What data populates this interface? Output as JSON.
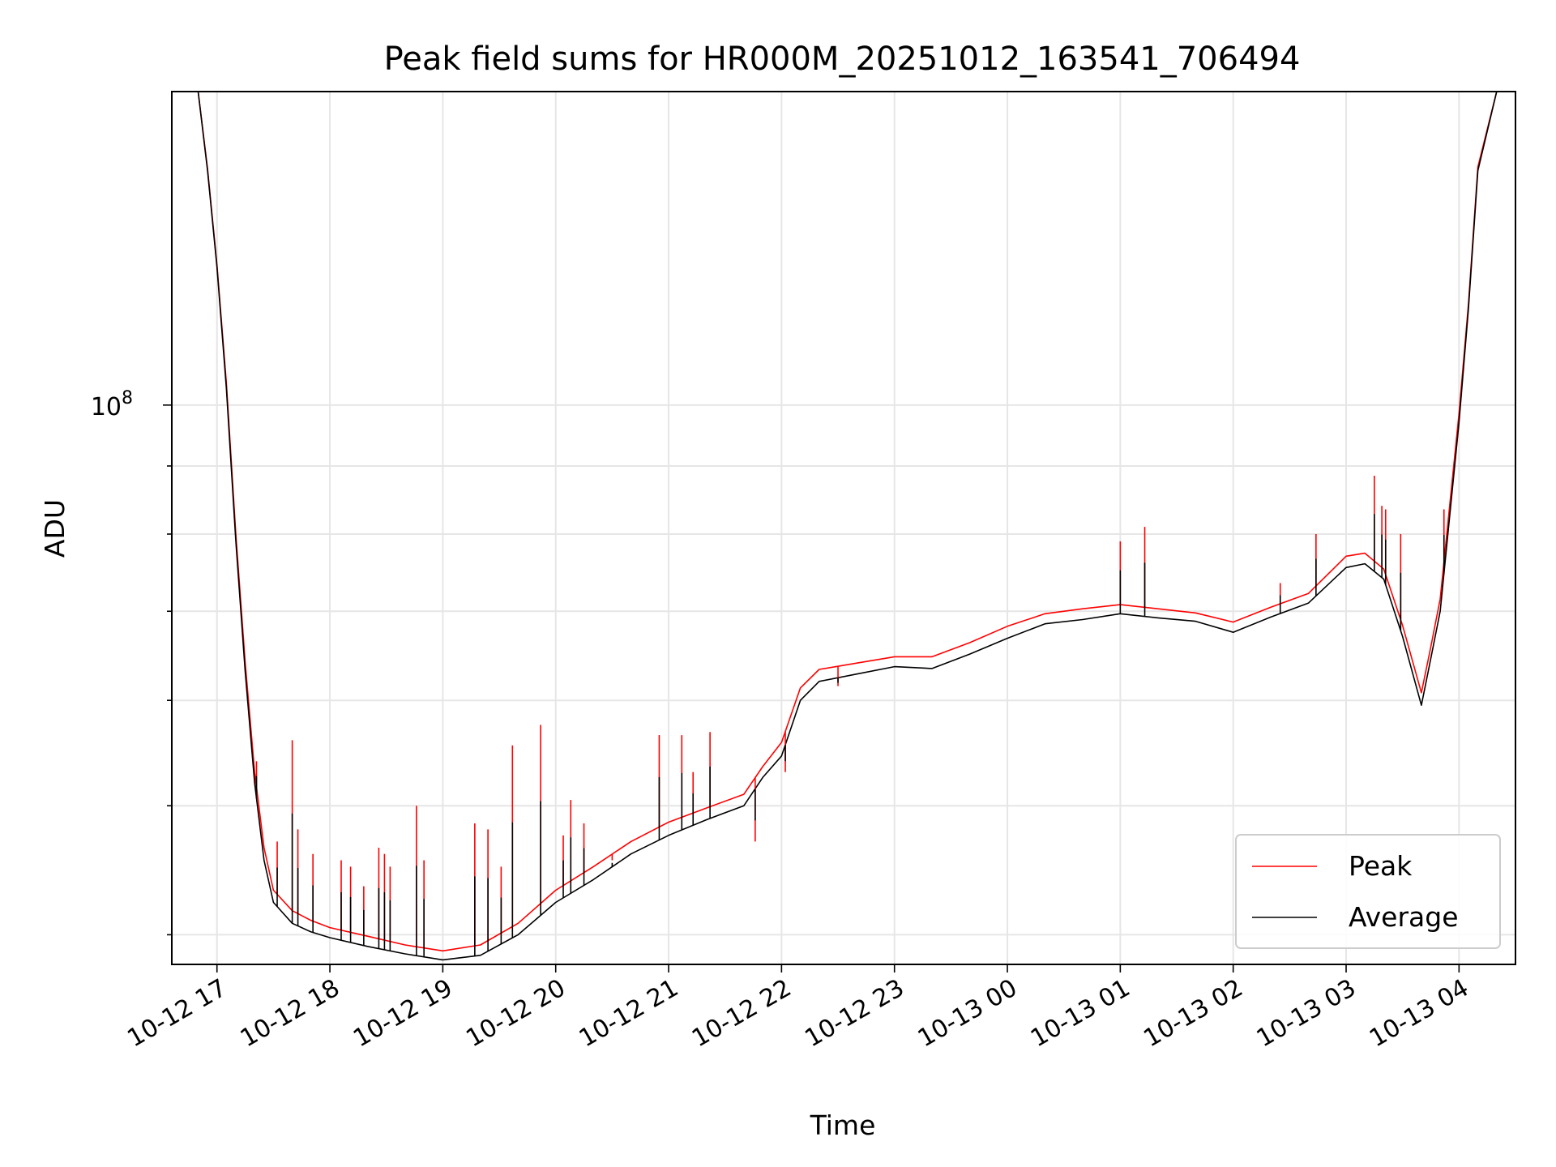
{
  "chart_data": {
    "type": "line",
    "title": "Peak field sums for HR000M_20251012_163541_706494",
    "xlabel": "Time",
    "ylabel": "ADU",
    "x_ticks": [
      "10-12 17",
      "10-12 18",
      "10-12 19",
      "10-12 20",
      "10-12 21",
      "10-12 22",
      "10-12 23",
      "10-13 00",
      "10-13 01",
      "10-13 02",
      "10-13 03",
      "10-13 04"
    ],
    "x_range": [
      "10-12 16:36",
      "10-13 04:30"
    ],
    "y_scale": "log",
    "y_tick_label": {
      "base": "10",
      "exponent": "8"
    },
    "y_range": [
      38000000,
      172000000
    ],
    "grid": true,
    "legend_position": "bottom-right",
    "legend": [
      "Peak",
      "Average"
    ],
    "colors": {
      "peak": "#ff0000",
      "average": "#000000"
    },
    "series": [
      {
        "name": "Average",
        "color": "#000000",
        "x": [
          "10-12 16:50",
          "10-12 16:55",
          "10-12 17:00",
          "10-12 17:05",
          "10-12 17:10",
          "10-12 17:15",
          "10-12 17:20",
          "10-12 17:25",
          "10-12 17:30",
          "10-12 17:40",
          "10-12 17:50",
          "10-12 18:00",
          "10-12 18:20",
          "10-12 18:40",
          "10-12 19:00",
          "10-12 19:20",
          "10-12 19:40",
          "10-12 20:00",
          "10-12 20:20",
          "10-12 20:40",
          "10-12 21:00",
          "10-12 21:20",
          "10-12 21:40",
          "10-12 21:50",
          "10-12 22:00",
          "10-12 22:10",
          "10-12 22:20",
          "10-12 22:40",
          "10-12 23:00",
          "10-12 23:20",
          "10-12 23:40",
          "10-13 00:00",
          "10-13 00:20",
          "10-13 00:40",
          "10-13 01:00",
          "10-13 01:20",
          "10-13 01:40",
          "10-13 02:00",
          "10-13 02:20",
          "10-13 02:40",
          "10-13 03:00",
          "10-13 03:10",
          "10-13 03:20",
          "10-13 03:30",
          "10-13 03:40",
          "10-13 03:45",
          "10-13 03:50",
          "10-13 04:00",
          "10-13 04:05",
          "10-13 04:10",
          "10-13 04:20"
        ],
        "y": [
          172000000,
          150000000,
          127000000,
          103000000,
          79000000,
          63000000,
          52000000,
          45500000,
          42300000,
          40800000,
          40200000,
          39800000,
          39200000,
          38700000,
          38300000,
          38600000,
          40000000,
          42300000,
          44000000,
          46000000,
          47500000,
          48800000,
          50000000,
          52500000,
          54500000,
          60000000,
          62000000,
          62800000,
          63600000,
          63400000,
          65000000,
          66800000,
          68500000,
          69000000,
          69700000,
          69200000,
          68800000,
          67500000,
          69300000,
          71000000,
          75500000,
          76000000,
          74000000,
          67000000,
          59500000,
          64500000,
          70000000,
          97000000,
          118000000,
          150000000,
          172000000
        ]
      },
      {
        "name": "Peak",
        "color": "#ff0000",
        "x": [
          "10-12 16:50",
          "10-12 16:55",
          "10-12 17:00",
          "10-12 17:05",
          "10-12 17:10",
          "10-12 17:15",
          "10-12 17:20",
          "10-12 17:25",
          "10-12 17:30",
          "10-12 17:40",
          "10-12 17:50",
          "10-12 18:00",
          "10-12 18:20",
          "10-12 18:40",
          "10-12 19:00",
          "10-12 19:20",
          "10-12 19:40",
          "10-12 20:00",
          "10-12 20:20",
          "10-12 20:40",
          "10-12 21:00",
          "10-12 21:20",
          "10-12 21:40",
          "10-12 21:50",
          "10-12 22:00",
          "10-12 22:10",
          "10-12 22:20",
          "10-12 22:40",
          "10-12 23:00",
          "10-12 23:20",
          "10-12 23:40",
          "10-13 00:00",
          "10-13 00:20",
          "10-13 00:40",
          "10-13 01:00",
          "10-13 01:20",
          "10-13 01:40",
          "10-13 02:00",
          "10-13 02:20",
          "10-13 02:40",
          "10-13 03:00",
          "10-13 03:10",
          "10-13 03:20",
          "10-13 03:30",
          "10-13 03:40",
          "10-13 03:45",
          "10-13 03:50",
          "10-13 04:00",
          "10-13 04:05",
          "10-13 04:10",
          "10-13 04:20"
        ],
        "y": [
          172000000,
          150500000,
          127500000,
          104000000,
          80000000,
          64000000,
          53000000,
          46500000,
          43200000,
          41700000,
          41000000,
          40500000,
          39900000,
          39300000,
          38900000,
          39300000,
          40800000,
          43200000,
          45000000,
          47000000,
          48600000,
          49800000,
          51000000,
          53500000,
          55800000,
          61300000,
          63300000,
          64000000,
          64700000,
          64700000,
          66300000,
          68200000,
          69700000,
          70300000,
          70800000,
          70300000,
          69800000,
          68700000,
          70500000,
          72200000,
          77000000,
          77400000,
          75300000,
          68300000,
          60800000,
          65800000,
          71500000,
          98500000,
          119000000,
          151000000,
          172000000
        ]
      }
    ],
    "peak_spikes": [
      {
        "x": "10-12 17:21",
        "y": 54000000
      },
      {
        "x": "10-12 17:32",
        "y": 47000000
      },
      {
        "x": "10-12 17:40",
        "y": 56000000
      },
      {
        "x": "10-12 17:43",
        "y": 48000000
      },
      {
        "x": "10-12 17:51",
        "y": 46000000
      },
      {
        "x": "10-12 18:06",
        "y": 45500000
      },
      {
        "x": "10-12 18:11",
        "y": 45000000
      },
      {
        "x": "10-12 18:18",
        "y": 43500000
      },
      {
        "x": "10-12 18:26",
        "y": 46500000
      },
      {
        "x": "10-12 18:29",
        "y": 46000000
      },
      {
        "x": "10-12 18:32",
        "y": 45000000
      },
      {
        "x": "10-12 18:46",
        "y": 50000000
      },
      {
        "x": "10-12 18:50",
        "y": 45500000
      },
      {
        "x": "10-12 19:17",
        "y": 48500000
      },
      {
        "x": "10-12 19:24",
        "y": 48000000
      },
      {
        "x": "10-12 19:31",
        "y": 45000000
      },
      {
        "x": "10-12 19:37",
        "y": 55500000
      },
      {
        "x": "10-12 19:52",
        "y": 57500000
      },
      {
        "x": "10-12 20:04",
        "y": 47500000
      },
      {
        "x": "10-12 20:08",
        "y": 50500000
      },
      {
        "x": "10-12 20:15",
        "y": 48500000
      },
      {
        "x": "10-12 20:30",
        "y": 45500000
      },
      {
        "x": "10-12 20:55",
        "y": 56500000
      },
      {
        "x": "10-12 21:07",
        "y": 56500000
      },
      {
        "x": "10-12 21:13",
        "y": 53000000
      },
      {
        "x": "10-12 21:22",
        "y": 56800000
      },
      {
        "x": "10-12 21:46",
        "y": 47000000
      },
      {
        "x": "10-12 22:02",
        "y": 53000000
      },
      {
        "x": "10-12 22:30",
        "y": 61500000
      },
      {
        "x": "10-13 01:00",
        "y": 79000000
      },
      {
        "x": "10-13 01:13",
        "y": 81000000
      },
      {
        "x": "10-13 02:25",
        "y": 73500000
      },
      {
        "x": "10-13 02:44",
        "y": 80000000
      },
      {
        "x": "10-13 03:15",
        "y": 88500000
      },
      {
        "x": "10-13 03:19",
        "y": 84000000
      },
      {
        "x": "10-13 03:21",
        "y": 83500000
      },
      {
        "x": "10-13 03:29",
        "y": 80000000
      },
      {
        "x": "10-13 03:52",
        "y": 83500000
      }
    ]
  }
}
